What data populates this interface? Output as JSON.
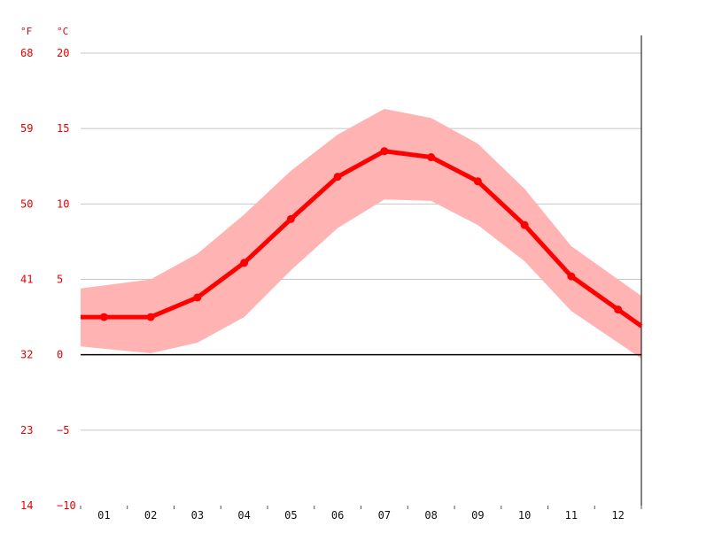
{
  "chart_data": {
    "type": "line",
    "units": {
      "fahrenheit": "°F",
      "celsius": "°C"
    },
    "categories": [
      "01",
      "02",
      "03",
      "04",
      "05",
      "06",
      "07",
      "08",
      "09",
      "10",
      "11",
      "12"
    ],
    "ylim": [
      -10,
      20
    ],
    "yticks_celsius": [
      "20",
      "15",
      "10",
      "5",
      "0",
      "−5",
      "−10"
    ],
    "yticks_fahrenheit": [
      "68",
      "59",
      "50",
      "41",
      "32",
      "23",
      "14"
    ],
    "ytick_values": [
      20,
      15,
      10,
      5,
      0,
      -5,
      -10
    ],
    "grid": true,
    "series": [
      {
        "values": [
          2.5,
          2.5,
          3.8,
          6.1,
          9.0,
          11.8,
          13.5,
          13.1,
          11.5,
          8.6,
          5.2,
          3.0
        ]
      }
    ],
    "band": {
      "upper": [
        4.6,
        5.0,
        6.7,
        9.3,
        12.2,
        14.6,
        16.3,
        15.7,
        14.0,
        11.0,
        7.2,
        5.0
      ],
      "lower": [
        0.4,
        0.1,
        0.8,
        2.5,
        5.6,
        8.4,
        10.3,
        10.2,
        8.6,
        6.2,
        2.9,
        0.8
      ]
    },
    "colors": {
      "line": "#ff0000",
      "band": "#ffb3b3",
      "axis_text": "#e60000",
      "month_text": "#111111",
      "grid": "#c8c8c8",
      "zero_line": "#000000"
    }
  }
}
